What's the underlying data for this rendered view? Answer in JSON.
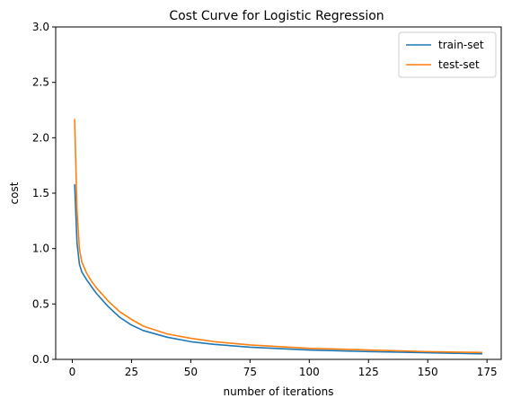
{
  "chart_data": {
    "type": "line",
    "title": "Cost Curve for Logistic Regression",
    "xlabel": "number of iterations",
    "ylabel": "cost",
    "xlim": [
      -7,
      181
    ],
    "ylim": [
      0,
      3.0
    ],
    "xticks": [
      0,
      25,
      50,
      75,
      100,
      125,
      150,
      175
    ],
    "yticks": [
      0.0,
      0.5,
      1.0,
      1.5,
      2.0,
      2.5,
      3.0
    ],
    "xtick_labels": [
      "0",
      "25",
      "50",
      "75",
      "100",
      "125",
      "150",
      "175"
    ],
    "ytick_labels": [
      "0.0",
      "0.5",
      "1.0",
      "1.5",
      "2.0",
      "2.5",
      "3.0"
    ],
    "grid": false,
    "legend_position": "top-right",
    "series": [
      {
        "name": "train-set",
        "color": "#1f77b4",
        "x": [
          1,
          2,
          3,
          4,
          6,
          8,
          10,
          15,
          20,
          25,
          30,
          40,
          50,
          60,
          75,
          100,
          125,
          150,
          173
        ],
        "y": [
          1.58,
          1.05,
          0.86,
          0.79,
          0.72,
          0.66,
          0.6,
          0.48,
          0.38,
          0.31,
          0.26,
          0.2,
          0.16,
          0.135,
          0.11,
          0.085,
          0.07,
          0.06,
          0.05
        ]
      },
      {
        "name": "test-set",
        "color": "#ff7f0e",
        "x": [
          1,
          2,
          3,
          4,
          6,
          8,
          10,
          15,
          20,
          25,
          30,
          40,
          50,
          60,
          75,
          100,
          125,
          150,
          173
        ],
        "y": [
          2.17,
          1.35,
          1.0,
          0.88,
          0.78,
          0.71,
          0.65,
          0.53,
          0.43,
          0.36,
          0.3,
          0.23,
          0.19,
          0.16,
          0.13,
          0.1,
          0.085,
          0.07,
          0.062
        ]
      }
    ]
  }
}
